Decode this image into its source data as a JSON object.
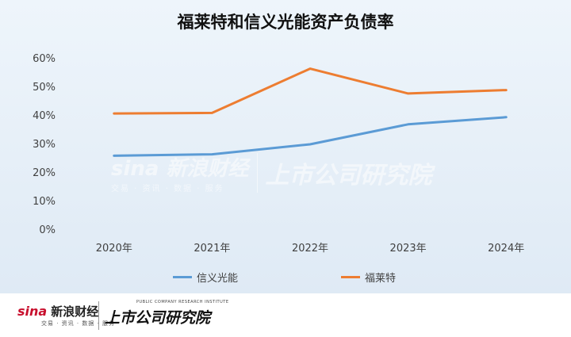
{
  "chart_data": {
    "type": "line",
    "title": "福莱特和信义光能资产负债率",
    "categories": [
      "2020年",
      "2021年",
      "2022年",
      "2023年",
      "2024年"
    ],
    "series": [
      {
        "name": "信义光能",
        "color": "#5b9bd5",
        "values": [
          26.0,
          26.5,
          30.0,
          37.0,
          39.5
        ]
      },
      {
        "name": "福莱特",
        "color": "#ed7d31",
        "values": [
          40.8,
          41.0,
          56.5,
          47.8,
          49.0
        ]
      }
    ],
    "yticks": [
      "0%",
      "10%",
      "20%",
      "30%",
      "40%",
      "50%",
      "60%"
    ],
    "ylim": [
      0,
      60
    ],
    "grid": false,
    "legend_position": "bottom"
  },
  "watermark": {
    "brand": "sina 新浪财经",
    "brand_sub": "交易 · 资讯 · 数据 · 服务",
    "institute": "上市公司研究院"
  },
  "footer": {
    "sina": "sina",
    "name": "新浪财经",
    "sub": "交易 · 资讯 · 数据 · 服务",
    "institute": "上市公司研究院",
    "institute_en": "PUBLIC COMPANY RESEARCH INSTITUTE"
  }
}
